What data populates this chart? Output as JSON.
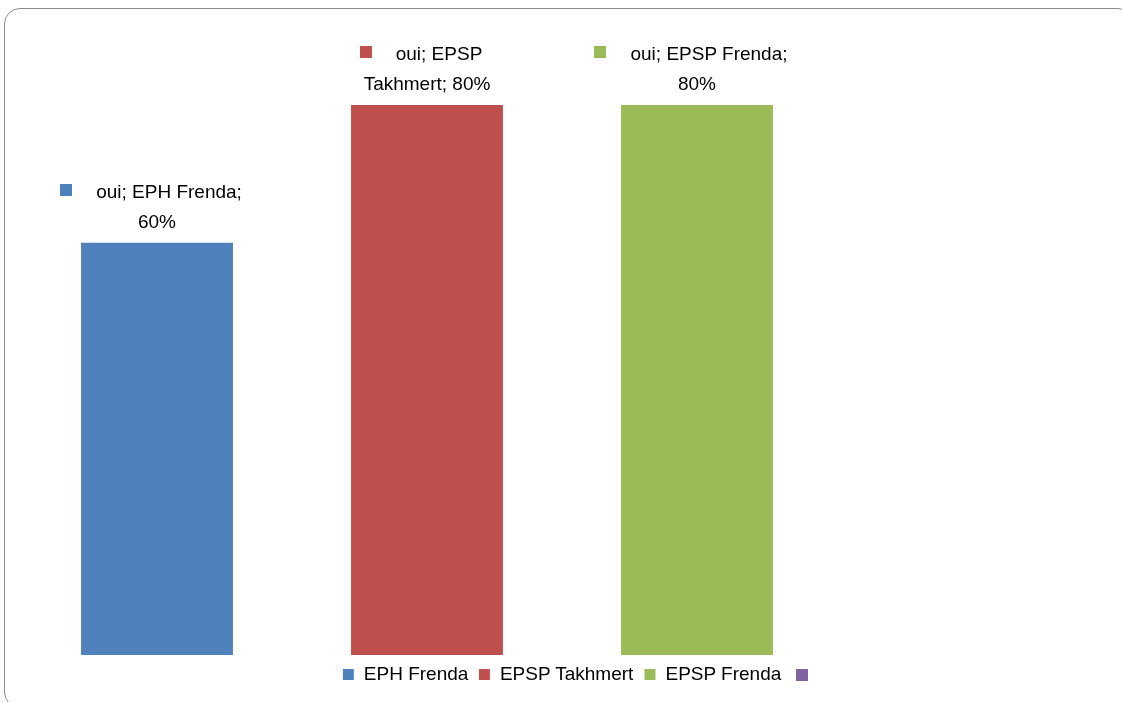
{
  "chart_data": {
    "type": "bar",
    "categories": [
      null
    ],
    "legend": "bottom",
    "data_labels": true,
    "series": [
      {
        "name": "EPH Frenda",
        "color": "#4f81bd",
        "values": [
          60
        ],
        "value_labels": [
          "oui; EPH Frenda; 60%"
        ]
      },
      {
        "name": "EPSP Takhmert",
        "color": "#c0504d",
        "values": [
          80
        ],
        "value_labels": [
          "oui; EPSP Takhmert; 80%"
        ]
      },
      {
        "name": "EPSP Frenda",
        "color": "#9bbb59",
        "values": [
          80
        ],
        "value_labels": [
          "oui; EPSP Frenda; 80%"
        ]
      },
      {
        "color": "#8064a2",
        "values": [
          null
        ]
      }
    ]
  }
}
